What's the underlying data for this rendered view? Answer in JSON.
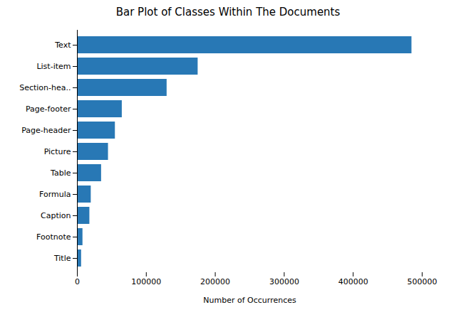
{
  "chart_data": {
    "type": "bar",
    "orientation": "horizontal",
    "title": "Bar Plot of Classes Within The Documents",
    "xlabel": "Number of Occurrences",
    "categories": [
      "Text",
      "List-item",
      "Section-hea..",
      "Page-footer",
      "Page-header",
      "Picture",
      "Table",
      "Formula",
      "Caption",
      "Footnote",
      "Title"
    ],
    "values": [
      485000,
      175000,
      130000,
      65000,
      55000,
      45000,
      35000,
      20000,
      18000,
      8000,
      6000
    ],
    "color": "#2878b5",
    "xlim": [
      0,
      500000
    ],
    "xticks": [
      0,
      100000,
      200000,
      300000,
      400000,
      500000
    ],
    "grid": false
  }
}
